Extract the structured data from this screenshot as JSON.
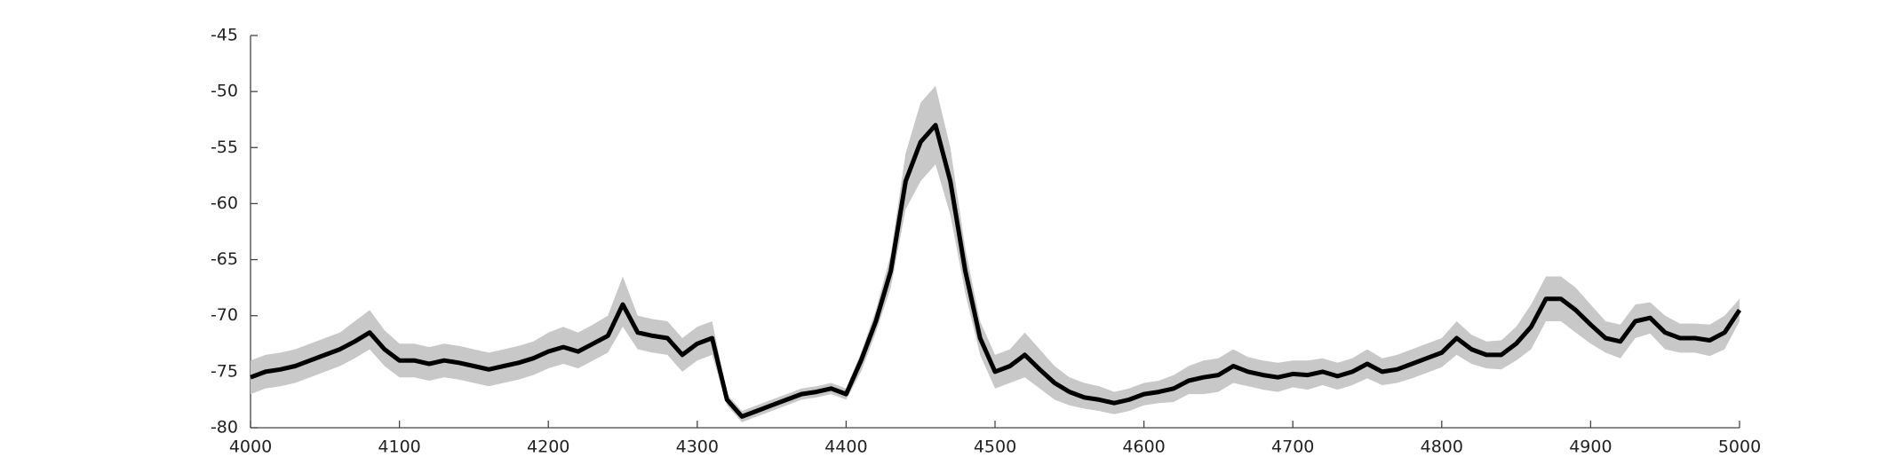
{
  "chart_data": {
    "type": "line",
    "x": [
      4000,
      4010,
      4020,
      4030,
      4040,
      4050,
      4060,
      4070,
      4080,
      4090,
      4100,
      4110,
      4120,
      4130,
      4140,
      4150,
      4160,
      4170,
      4180,
      4190,
      4200,
      4210,
      4220,
      4230,
      4240,
      4250,
      4260,
      4270,
      4280,
      4290,
      4300,
      4310,
      4320,
      4330,
      4340,
      4350,
      4360,
      4370,
      4380,
      4390,
      4400,
      4410,
      4420,
      4430,
      4440,
      4450,
      4460,
      4470,
      4480,
      4490,
      4500,
      4510,
      4520,
      4530,
      4540,
      4550,
      4560,
      4570,
      4580,
      4590,
      4600,
      4610,
      4620,
      4630,
      4640,
      4650,
      4660,
      4670,
      4680,
      4690,
      4700,
      4710,
      4720,
      4730,
      4740,
      4750,
      4760,
      4770,
      4780,
      4790,
      4800,
      4810,
      4820,
      4830,
      4840,
      4850,
      4860,
      4870,
      4880,
      4890,
      4900,
      4910,
      4920,
      4930,
      4940,
      4950,
      4960,
      4970,
      4980,
      4990,
      5000
    ],
    "series": [
      {
        "color": "#000000",
        "values": [
          -75.5,
          -75,
          -74.8,
          -74.5,
          -74,
          -73.5,
          -73,
          -72.3,
          -71.5,
          -73,
          -74,
          -74,
          -74.3,
          -74,
          -74.2,
          -74.5,
          -74.8,
          -74.5,
          -74.2,
          -73.8,
          -73.2,
          -72.8,
          -73.2,
          -72.5,
          -71.8,
          -69,
          -71.5,
          -71.8,
          -72,
          -73.5,
          -72.5,
          -72,
          -77.5,
          -79,
          -78.5,
          -78,
          -77.5,
          -77,
          -76.8,
          -76.5,
          -77,
          -74,
          -70.5,
          -66,
          -58,
          -54.5,
          -53,
          -58,
          -66,
          -72,
          -75,
          -74.5,
          -73.5,
          -74.8,
          -76,
          -76.8,
          -77.3,
          -77.5,
          -77.8,
          -77.5,
          -77,
          -76.8,
          -76.5,
          -75.8,
          -75.5,
          -75.3,
          -74.5,
          -75,
          -75.3,
          -75.5,
          -75.2,
          -75.3,
          -75,
          -75.4,
          -75,
          -74.3,
          -75,
          -74.8,
          -74.3,
          -73.8,
          -73.3,
          -72,
          -73,
          -73.5,
          -73.5,
          -72.5,
          -71,
          -68.5,
          -68.5,
          -69.5,
          -70.8,
          -72,
          -72.3,
          -70.5,
          -70.2,
          -71.5,
          -72,
          -72,
          -72.2,
          -71.5,
          -69.5
        ]
      }
    ],
    "band": {
      "color": "#c8c8c8",
      "upper": [
        -74,
        -73.5,
        -73.3,
        -73,
        -72.5,
        -72,
        -71.5,
        -70.5,
        -69.5,
        -71.3,
        -72.5,
        -72.5,
        -72.8,
        -72.5,
        -72.7,
        -73,
        -73.3,
        -73,
        -72.7,
        -72.3,
        -71.5,
        -71,
        -71.5,
        -70.8,
        -70,
        -66.5,
        -70,
        -70.3,
        -70.5,
        -72,
        -71,
        -70.5,
        -77,
        -78.5,
        -78,
        -77.5,
        -77,
        -76.5,
        -76.3,
        -76,
        -76.5,
        -73.3,
        -69.5,
        -64.5,
        -55.5,
        -51,
        -49.5,
        -55,
        -64,
        -70.5,
        -73.5,
        -73,
        -71.5,
        -73,
        -74.5,
        -75.5,
        -76,
        -76.3,
        -76.8,
        -76.5,
        -76,
        -75.8,
        -75.3,
        -74.5,
        -74,
        -73.8,
        -73,
        -73.7,
        -74,
        -74.2,
        -74,
        -74,
        -73.8,
        -74.2,
        -73.8,
        -73,
        -73.8,
        -73.5,
        -73,
        -72.5,
        -72,
        -70.5,
        -71.7,
        -72.3,
        -72.2,
        -71,
        -69,
        -66.5,
        -66.5,
        -67.5,
        -69,
        -70.5,
        -70.8,
        -69,
        -68.8,
        -70,
        -70.7,
        -70.7,
        -70.8,
        -70,
        -68.5
      ],
      "lower": [
        -77,
        -76.5,
        -76.3,
        -76,
        -75.5,
        -75,
        -74.5,
        -73.8,
        -73,
        -74.5,
        -75.5,
        -75.5,
        -75.8,
        -75.5,
        -75.7,
        -76,
        -76.3,
        -76,
        -75.7,
        -75.3,
        -74.7,
        -74.3,
        -74.7,
        -74,
        -73.3,
        -71,
        -73,
        -73.3,
        -73.5,
        -75,
        -74,
        -73.5,
        -78,
        -79.5,
        -79,
        -78.5,
        -78,
        -77.5,
        -77.3,
        -77,
        -77.5,
        -75,
        -71.5,
        -67.5,
        -60.5,
        -58,
        -56.5,
        -61,
        -68,
        -73.5,
        -76.5,
        -76,
        -75.5,
        -76.5,
        -77.5,
        -78,
        -78.3,
        -78.5,
        -78.8,
        -78.5,
        -78,
        -77.8,
        -77.7,
        -77,
        -77,
        -76.8,
        -76,
        -76.3,
        -76.6,
        -76.8,
        -76.4,
        -76.6,
        -76.2,
        -76.6,
        -76.2,
        -75.6,
        -76.2,
        -76,
        -75.6,
        -75.1,
        -74.6,
        -73.5,
        -74.3,
        -74.7,
        -74.8,
        -74,
        -73,
        -70.5,
        -70.5,
        -71.5,
        -72.5,
        -73.3,
        -73.8,
        -72,
        -71.6,
        -73,
        -73.3,
        -73.3,
        -73.6,
        -73,
        -70.5
      ]
    },
    "xlim": [
      4000,
      5000
    ],
    "xticks": [
      4000,
      4100,
      4200,
      4300,
      4400,
      4500,
      4600,
      4700,
      4800,
      4900,
      5000
    ],
    "ylim": [
      -80,
      -45
    ],
    "yticks": [
      -80,
      -75,
      -70,
      -65,
      -60,
      -55,
      -50,
      -45
    ]
  }
}
